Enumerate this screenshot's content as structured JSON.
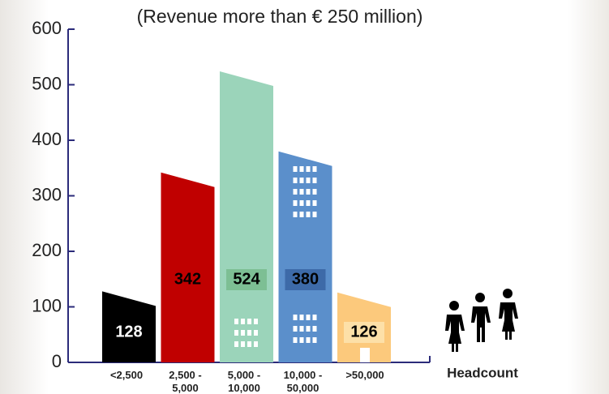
{
  "chart_data": {
    "type": "bar",
    "title": "(Revenue more than € 250 million)",
    "categories": [
      "<2,500",
      "2,500 - 5,000",
      "5,000 - 10,000",
      "10,000 - 50,000",
      ">50,000"
    ],
    "values": [
      128,
      342,
      524,
      380,
      126
    ],
    "colors": [
      "#000000",
      "#c00000",
      "#9bd4ba",
      "#5b8fcb",
      "#fcc97c"
    ],
    "x_label": "Headcount",
    "ylim": [
      0,
      600
    ],
    "yticks": [
      0,
      100,
      200,
      300,
      400,
      500,
      600
    ]
  }
}
